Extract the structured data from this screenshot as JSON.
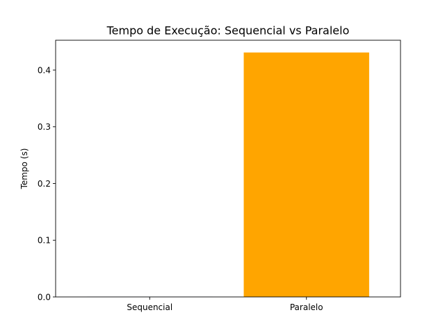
{
  "chart_data": {
    "type": "bar",
    "title": "Tempo de Execução: Sequencial vs Paralelo",
    "xlabel": "",
    "ylabel": "Tempo (s)",
    "categories": [
      "Sequencial",
      "Paralelo"
    ],
    "values": [
      0.0002,
      0.431
    ],
    "colors": [
      "#1f77b4",
      "#ffa500"
    ],
    "ylim": [
      0,
      0.4526
    ],
    "yticks": [
      0.0,
      0.1,
      0.2,
      0.3,
      0.4
    ],
    "ytick_labels": [
      "0.0",
      "0.1",
      "0.2",
      "0.3",
      "0.4"
    ],
    "grid": false,
    "legend": "none"
  }
}
